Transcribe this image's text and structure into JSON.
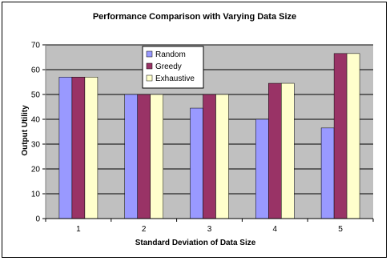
{
  "chart_data": {
    "type": "bar",
    "title": "Performance Comparison with Varying Data Size",
    "xlabel": "Standard Deviation of Data Size",
    "ylabel": "Output Utility",
    "categories": [
      "1",
      "2",
      "3",
      "4",
      "5"
    ],
    "ylim": [
      0,
      70
    ],
    "yticks": [
      0,
      10,
      20,
      30,
      40,
      50,
      60,
      70
    ],
    "grid": true,
    "legend_position": "top-center",
    "series": [
      {
        "name": "Random",
        "color": "#9999ff",
        "values": [
          57,
          50,
          44.5,
          40,
          36.5
        ]
      },
      {
        "name": "Greedy",
        "color": "#993366",
        "values": [
          57,
          50,
          50,
          54.5,
          66.5
        ]
      },
      {
        "name": "Exhaustive",
        "color": "#ffffcc",
        "values": [
          57,
          50,
          50,
          54.5,
          66.5
        ]
      }
    ],
    "plot_background": "#c0c0c0"
  }
}
